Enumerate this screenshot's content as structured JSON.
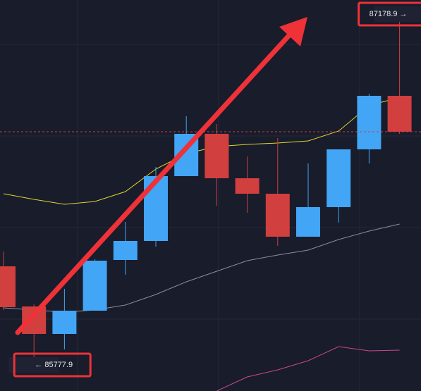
{
  "chart_data": {
    "type": "candlestick",
    "open": [
      86147.8,
      85975.0,
      85856.7,
      85956.8,
      86175.1,
      86257.0,
      86536.0,
      86718.0,
      86526.9,
      86460.2,
      86275.2,
      86402.6,
      86651.2,
      86881.7
    ],
    "high": [
      86211.5,
      85984.1,
      86050.8,
      86178.2,
      86338.9,
      86575.4,
      86793.8,
      86760.4,
      86620.9,
      86699.8,
      86590.6,
      86651.2,
      86890.8,
      87178.9
    ],
    "low": [
      85959.8,
      85777.9,
      85790.0,
      85956.8,
      86111.5,
      86232.8,
      86536.0,
      86408.6,
      86378.3,
      86235.8,
      86275.2,
      86335.9,
      86590.6,
      86718.0
    ],
    "close": [
      85972.0,
      85856.7,
      85956.8,
      86172.1,
      86257.0,
      86536.0,
      86718.0,
      86526.9,
      86460.2,
      86275.2,
      86402.6,
      86651.2,
      86881.7,
      86727.1
    ],
    "up_color": "#42a5f5",
    "down_color": "#d13f3f",
    "series": [
      {
        "color": "#e3d52f",
        "values": [
          86460.2,
          86435.9,
          86414.7,
          86426.8,
          86469.3,
          86566.3,
          86633.0,
          86663.4,
          86672.5,
          86678.5,
          86687.6,
          86730.1,
          86839.3,
          86875.6
        ]
      },
      {
        "color": "#8a8e9c",
        "values": [
          85968.9,
          85959.8,
          85950.7,
          85959.8,
          85981.1,
          86026.5,
          86081.1,
          86126.6,
          86172.1,
          86196.4,
          86217.6,
          86263.1,
          86299.5,
          86329.8
        ]
      },
      {
        "color": "#d0468f",
        "values": [
          null,
          null,
          null,
          null,
          null,
          null,
          null,
          85611.1,
          85671.7,
          85702.1,
          85741.5,
          85802.1,
          85783.9,
          85787.0
        ]
      }
    ],
    "annotations": [
      {
        "label": "← 85777.9",
        "value": 85777.9
      },
      {
        "label": "87178.9 →",
        "value": 87178.9
      }
    ],
    "ylim": [
      85611.1,
      87294.1
    ]
  }
}
